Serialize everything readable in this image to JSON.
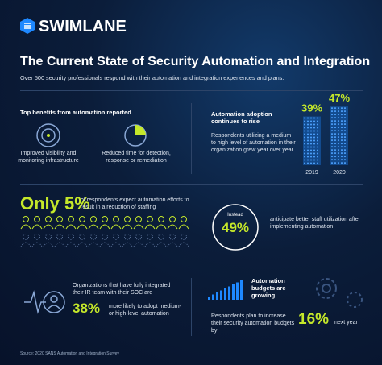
{
  "header": {
    "logo": "SWIMLANE",
    "title": "The Current State of Security Automation and Integration",
    "subtitle": "Over 500 security professionals respond with their automation and integration experiences and plans."
  },
  "benefits": {
    "heading": "Top benefits from automation reported",
    "items": [
      "Improved visibility and monitoring infrastructure",
      "Reduced time for detection, response or remediation"
    ]
  },
  "adoption": {
    "heading": "Automation adoption continues to rise",
    "text": "Respondents utilizing a medium to high level of automation in their organization grew year over year",
    "bars": [
      {
        "year": "2019",
        "value": 39,
        "value_label": "39%"
      },
      {
        "year": "2020",
        "value": 47,
        "value_label": "47%"
      }
    ]
  },
  "staffing": {
    "headline": "Only 5%",
    "text": "of respondents expect automation efforts to result in a reduction of staffing",
    "instead": "Instead",
    "stat": "49%",
    "stat_text": "anticipate better staff utilization after implementing automation"
  },
  "integration": {
    "text": "Organizations that have fully integrated their IR team with their SOC are",
    "stat": "38%",
    "stat_text": "more likely to adopt medium- or high-level automation"
  },
  "budgets": {
    "heading": "Automation budgets are growing",
    "text": "Respondents plan to increase their security automation budgets by",
    "stat": "16%",
    "stat_suffix": "next year"
  },
  "source": "Source: 2020 SANS Automation and Integration Survey"
}
